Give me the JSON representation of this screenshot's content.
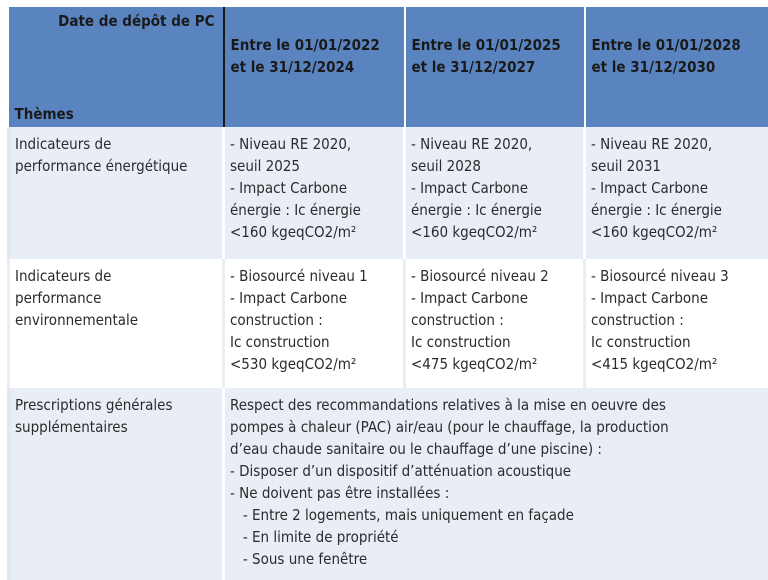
{
  "header": {
    "corner_top": "Date de dépôt de PC",
    "corner_bottom": "Thèmes",
    "periods": [
      "Entre le 01/01/2022\net le 31/12/2024",
      "Entre le 01/01/2025\net le 31/12/2027",
      "Entre le 01/01/2028\net le 31/12/2030"
    ]
  },
  "rows": [
    {
      "theme": "Indicateurs de\nperformance énergétique",
      "cells": [
        "- Niveau RE 2020,\nseuil 2025\n- Impact Carbone\nénergie : Ic énergie\n<160 kgeqCO2/m²",
        "- Niveau RE 2020,\nseuil 2028\n- Impact Carbone\nénergie : Ic énergie\n<160 kgeqCO2/m²",
        "- Niveau RE 2020,\nseuil 2031\n- Impact Carbone\nénergie : Ic énergie\n<160 kgeqCO2/m²"
      ]
    },
    {
      "theme": "Indicateurs de\nperformance\nenvironnementale",
      "cells": [
        "- Biosourcé niveau 1\n- Impact Carbone\nconstruction :\nIc construction\n<530 kgeqCO2/m²",
        "- Biosourcé niveau 2\n- Impact Carbone\nconstruction :\nIc construction\n<475 kgeqCO2/m²",
        "- Biosourcé niveau 3\n- Impact Carbone\nconstruction :\nIc construction\n<415 kgeqCO2/m²"
      ]
    },
    {
      "theme": "Prescriptions générales\nsupplémentaires",
      "text": "Respect des recommandations relatives à la mise en oeuvre des\npompes à chaleur (PAC) air/eau (pour le chauffage, la production\nd’eau chaude sanitaire ou le chauffage d’une piscine) :\n- Disposer d’un dispositif d’atténuation acoustique\n- Ne doivent pas être installées :\n   - Entre 2 logements, mais uniquement en façade\n   - En limite de propriété\n   - Sous une fenêtre"
    }
  ],
  "colors": {
    "header_bg": "#5a84bf",
    "row_alt_bg": "#e8edf6"
  }
}
